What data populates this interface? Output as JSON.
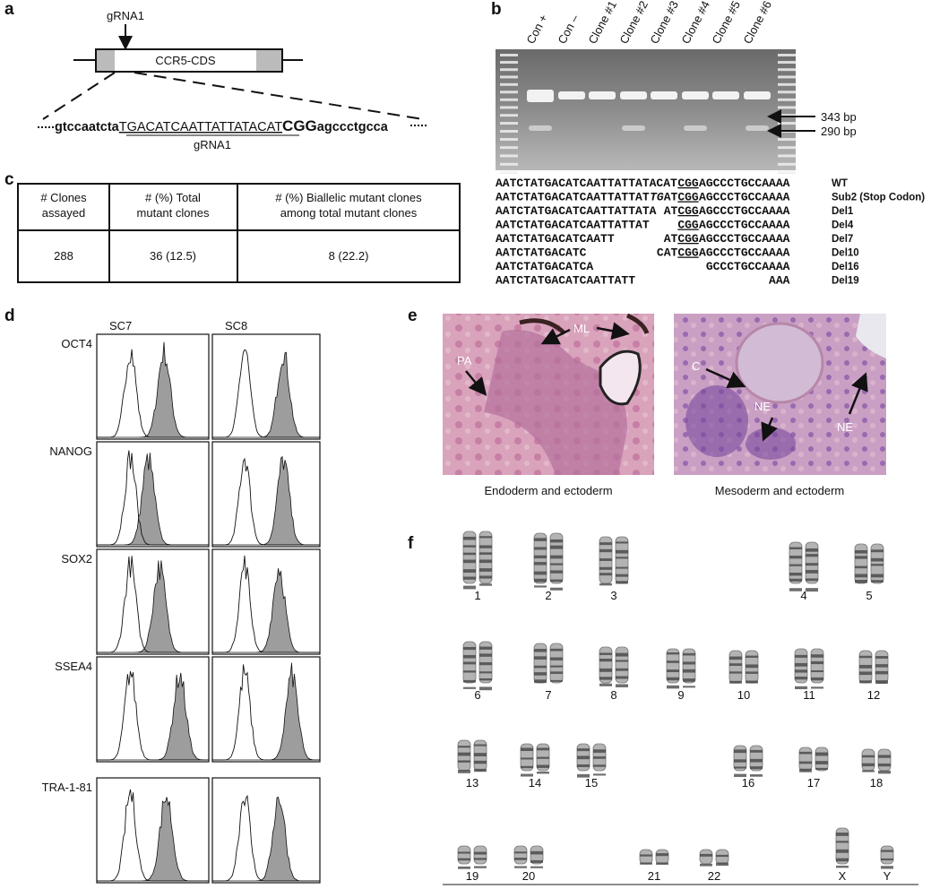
{
  "panel_a": {
    "label": "a",
    "grna_label": "gRNA1",
    "gene": "CCR5-CDS",
    "sequence": {
      "before": "gtccaatcta",
      "target": "TGACATCAATTATTATACAT",
      "pam": "CGG",
      "after": "agccctgcca"
    },
    "target_label": "gRNA1"
  },
  "panel_b": {
    "label": "b",
    "lanes": [
      "Con +",
      "Con –",
      "Clone #1",
      "Clone #2",
      "Clone #3",
      "Clone #4",
      "Clone #5",
      "Clone #6"
    ],
    "band_labels": [
      "343 bp",
      "290 bp"
    ],
    "alleles": [
      {
        "prefix": "AATCTATGACATCAATTATTATACAT",
        "pam": "CGG",
        "suffix": "AGCCCTGCCAAAA",
        "name": "WT"
      },
      {
        "prefix": "AATCTATGACATCAATTATTAT",
        "sub": "TG",
        "near": "AT",
        "pam": "CGG",
        "suffix": "AGCCCTGCCAAAA",
        "name": "Sub2 (Stop Codon)"
      },
      {
        "prefix": "AATCTATGACATCAATTATTATA",
        "near": "AT",
        "pam": "CGG",
        "suffix": "AGCCCTGCCAAAA",
        "name": "Del1"
      },
      {
        "prefix": "AATCTATGACATCAATTATTAT",
        "pam": "CGG",
        "suffix": "AGCCCTGCCAAAA",
        "name": "Del4"
      },
      {
        "prefix": "AATCTATGACATCAATT",
        "near": "AT",
        "pam": "CGG",
        "suffix": "AGCCCTGCCAAAA",
        "name": "Del7"
      },
      {
        "prefix": "AATCTATGACATC",
        "near": "CAT",
        "pam": "CGG",
        "suffix": "AGCCCTGCCAAAA",
        "name": "Del10"
      },
      {
        "prefix": "AATCTATGACATCA",
        "suffix": "GCCCTGCCAAAA",
        "name": "Del16"
      },
      {
        "prefix": "AATCTATGACATCAATTATT",
        "suffix": "AAA",
        "name": "Del19"
      }
    ]
  },
  "panel_c": {
    "label": "c",
    "headers": [
      [
        "# Clones",
        "assayed"
      ],
      [
        "# (%) Total",
        "mutant clones"
      ],
      [
        "# (%) Biallelic mutant clones",
        "among total mutant clones"
      ]
    ],
    "row": [
      "288",
      "36 (12.5)",
      "8 (22.2)"
    ]
  },
  "panel_d": {
    "label": "d",
    "columns": [
      "SC7",
      "SC8"
    ],
    "markers": [
      "OCT4",
      "NANOG",
      "SOX2",
      "SSEA4",
      "TRA-1-81"
    ]
  },
  "panel_e": {
    "label": "e",
    "images": [
      {
        "caption": "Endoderm and ectoderm",
        "labels": [
          "PA",
          "ML"
        ]
      },
      {
        "caption": "Mesoderm and ectoderm",
        "labels": [
          "C",
          "NE",
          "NE"
        ]
      }
    ]
  },
  "panel_f": {
    "label": "f",
    "chromosomes": [
      "1",
      "2",
      "3",
      "4",
      "5",
      "6",
      "7",
      "8",
      "9",
      "10",
      "11",
      "12",
      "13",
      "14",
      "15",
      "16",
      "17",
      "18",
      "19",
      "20",
      "21",
      "22",
      "X",
      "Y"
    ]
  }
}
